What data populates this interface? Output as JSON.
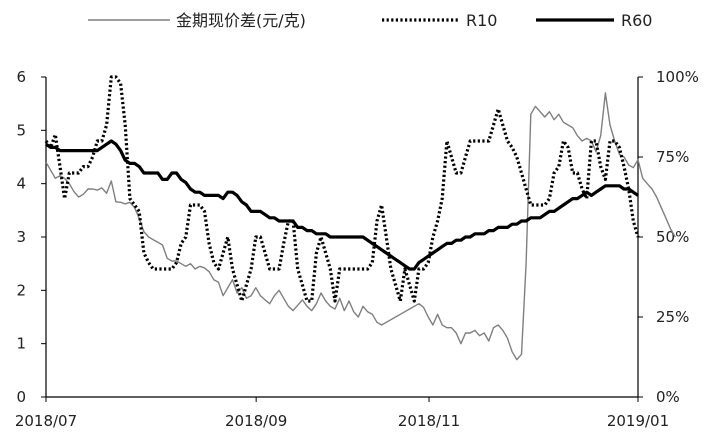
{
  "chart_data": {
    "type": "line",
    "title": "",
    "legend": {
      "placement": "top",
      "entries": [
        {
          "name": "金期现价差(元/克)",
          "style": "thin-gray"
        },
        {
          "name": "R10",
          "style": "dotted-black"
        },
        {
          "name": "R60",
          "style": "thick-black"
        }
      ]
    },
    "x_axis": {
      "ticks": [
        "2018/07",
        "2018/09",
        "2018/11",
        "2019/01"
      ],
      "range_index": [
        0,
        127
      ]
    },
    "y_left": {
      "range": [
        0,
        6
      ],
      "ticks": [
        "0",
        "1",
        "2",
        "3",
        "4",
        "5",
        "6"
      ]
    },
    "y_right": {
      "range": [
        0,
        100
      ],
      "ticks": [
        "0%",
        "25%",
        "50%",
        "75%",
        "100%"
      ]
    },
    "series": [
      {
        "name": "金期现价差(元/克)",
        "axis": "left",
        "color": "#7f7f7f",
        "values": [
          4.4,
          4.25,
          4.1,
          4.15,
          4.1,
          4.0,
          3.85,
          3.75,
          3.8,
          3.9,
          3.9,
          3.88,
          3.92,
          3.82,
          4.05,
          3.66,
          3.65,
          3.62,
          3.65,
          3.55,
          3.35,
          3.1,
          3.0,
          2.95,
          2.9,
          2.85,
          2.6,
          2.55,
          2.55,
          2.5,
          2.45,
          2.5,
          2.4,
          2.45,
          2.42,
          2.35,
          2.2,
          2.15,
          1.9,
          2.05,
          2.2,
          1.95,
          2.05,
          1.85,
          1.9,
          2.05,
          1.9,
          1.82,
          1.75,
          1.9,
          2.0,
          1.85,
          1.7,
          1.62,
          1.72,
          1.82,
          1.7,
          1.62,
          1.75,
          1.95,
          1.8,
          1.7,
          1.65,
          1.85,
          1.62,
          1.8,
          1.6,
          1.5,
          1.7,
          1.6,
          1.55,
          1.4,
          1.35,
          1.4,
          1.45,
          1.5,
          1.55,
          1.6,
          1.65,
          1.7,
          1.75,
          1.68,
          1.5,
          1.35,
          1.55,
          1.35,
          1.3,
          1.3,
          1.2,
          1.0,
          1.2,
          1.2,
          1.25,
          1.15,
          1.2,
          1.05,
          1.3,
          1.35,
          1.25,
          1.1,
          0.85,
          0.7,
          0.8,
          2.5,
          5.3,
          5.45,
          5.35,
          5.25,
          5.35,
          5.2,
          5.3,
          5.15,
          5.1,
          5.05,
          4.9,
          4.8,
          4.85,
          4.8,
          4.6,
          4.9,
          5.7,
          5.1,
          4.8,
          4.55,
          4.5,
          4.35,
          4.3,
          4.45,
          4.1,
          4.0,
          3.9,
          3.75,
          3.55,
          3.35,
          3.15,
          3.0
        ],
        "values_note": ""
      },
      {
        "name": "R10",
        "axis": "right",
        "color": "#000000",
        "values": [
          80,
          78,
          82,
          72,
          62,
          70,
          70,
          70,
          72,
          72,
          75,
          80,
          80,
          85,
          100,
          100,
          98,
          85,
          62,
          60,
          58,
          45,
          42,
          40,
          40,
          40,
          40,
          40,
          42,
          48,
          50,
          60,
          60,
          60,
          58,
          48,
          42,
          40,
          45,
          50,
          40,
          35,
          30,
          35,
          40,
          50,
          50,
          45,
          40,
          40,
          40,
          48,
          55,
          55,
          40,
          35,
          30,
          30,
          45,
          50,
          45,
          40,
          30,
          40,
          40,
          40,
          40,
          40,
          40,
          40,
          42,
          55,
          60,
          50,
          40,
          35,
          30,
          40,
          35,
          30,
          40,
          40,
          42,
          50,
          55,
          62,
          80,
          75,
          70,
          70,
          75,
          80,
          80,
          80,
          80,
          80,
          85,
          90,
          85,
          80,
          78,
          75,
          70,
          65,
          60,
          60,
          60,
          60,
          62,
          70,
          72,
          80,
          78,
          70,
          70,
          65,
          62,
          80,
          80,
          72,
          68,
          80,
          80,
          78,
          72,
          65,
          55,
          50
        ],
        "values_note": ""
      },
      {
        "name": "R60",
        "axis": "right",
        "color": "#000000",
        "values": [
          79,
          78,
          78,
          77,
          77,
          77,
          77,
          77,
          77,
          77,
          77,
          77,
          78,
          79,
          80,
          79,
          77,
          74,
          73,
          73,
          72,
          70,
          70,
          70,
          70,
          68,
          68,
          70,
          70,
          68,
          67,
          65,
          64,
          64,
          63,
          63,
          63,
          63,
          62,
          64,
          64,
          63,
          61,
          60,
          58,
          58,
          58,
          57,
          56,
          56,
          55,
          55,
          55,
          55,
          53,
          53,
          52,
          52,
          51,
          51,
          51,
          50,
          50,
          50,
          50,
          50,
          50,
          50,
          50,
          49,
          48,
          47,
          46,
          45,
          44,
          43,
          42,
          41,
          40,
          40,
          42,
          43,
          44,
          45,
          46,
          47,
          48,
          48,
          49,
          49,
          50,
          50,
          51,
          51,
          51,
          52,
          52,
          53,
          53,
          53,
          54,
          54,
          55,
          55,
          56,
          56,
          56,
          57,
          58,
          58,
          59,
          60,
          61,
          62,
          62,
          63,
          64,
          63,
          64,
          65,
          66,
          66,
          66,
          66,
          65,
          65,
          64,
          63
        ],
        "values_note": ""
      }
    ]
  }
}
